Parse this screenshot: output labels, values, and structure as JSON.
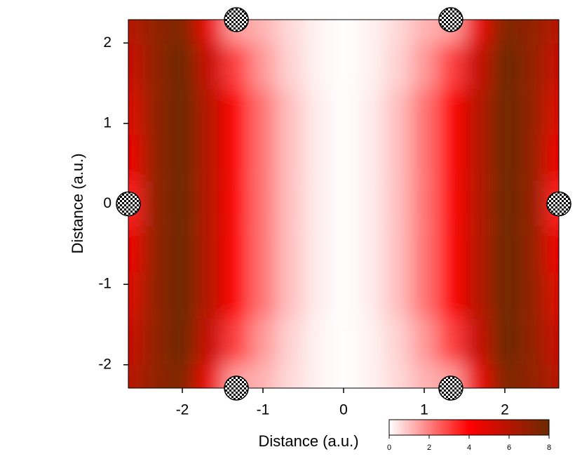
{
  "chart_data": {
    "type": "heatmap",
    "x_label": "Distance (a.u.)",
    "y_label": "Distance (a.u.)",
    "x": [
      -2.66,
      -2.33,
      -2.0,
      -1.67,
      -1.33,
      -1.0,
      -0.67,
      -0.33,
      0,
      0.33,
      0.67,
      1.0,
      1.33,
      1.67,
      2.0,
      2.33,
      2.66
    ],
    "y": [
      2.28,
      1.71,
      1.14,
      0.57,
      0,
      -0.57,
      -1.14,
      -1.71,
      -2.28
    ],
    "z": [
      [
        6,
        7,
        7.5,
        4.5,
        1.5,
        1.2,
        0.6,
        0.2,
        0,
        0.2,
        0.6,
        1.2,
        1.5,
        4.5,
        7.5,
        7,
        6
      ],
      [
        5.5,
        7,
        8,
        5.5,
        3,
        1.6,
        0.7,
        0.2,
        0,
        0.2,
        0.7,
        1.6,
        3,
        5.5,
        8,
        7,
        5.5
      ],
      [
        5,
        7,
        8,
        6,
        4,
        2.2,
        1,
        0.3,
        0,
        0.3,
        1,
        2.2,
        4,
        6,
        8,
        7,
        5
      ],
      [
        4.5,
        7,
        8,
        6,
        4,
        2.2,
        1,
        0.3,
        0,
        0.3,
        1,
        2.2,
        4,
        6,
        8,
        7,
        4.5
      ],
      [
        3.5,
        7,
        8,
        6,
        4,
        2.2,
        1,
        0.3,
        0,
        0.3,
        1,
        2.2,
        4,
        6,
        8,
        7,
        3.5
      ],
      [
        4.5,
        7,
        8,
        6,
        4,
        2.2,
        1,
        0.3,
        0,
        0.3,
        1,
        2.2,
        4,
        6,
        8,
        7,
        4.5
      ],
      [
        5,
        7,
        8,
        6,
        4,
        2.2,
        1,
        0.3,
        0,
        0.3,
        1,
        2.2,
        4,
        6,
        8,
        7,
        5
      ],
      [
        5.5,
        7,
        8,
        5.5,
        3,
        1.6,
        0.7,
        0.2,
        0,
        0.2,
        0.7,
        1.6,
        3,
        5.5,
        8,
        7,
        5.5
      ],
      [
        6,
        7,
        7.5,
        4.5,
        1.5,
        1.2,
        0.6,
        0.2,
        0,
        0.2,
        0.6,
        1.2,
        1.5,
        4.5,
        7.5,
        7,
        6
      ]
    ],
    "colors": [
      "#ffffff",
      "#ff0000",
      "#6b2a00"
    ],
    "zlim": [
      0,
      8
    ],
    "zticks": [
      0,
      2,
      4,
      6,
      8
    ],
    "xlim": [
      -2.67,
      2.67
    ],
    "ylim": [
      -2.29,
      2.29
    ],
    "xticks": [
      -2,
      -1,
      0,
      1,
      2
    ],
    "yticks": [
      -2,
      -1,
      0,
      1,
      2
    ],
    "markers": {
      "x": [
        -1.33,
        1.33,
        -2.67,
        2.67,
        -1.33,
        1.33
      ],
      "y": [
        2.29,
        2.29,
        0,
        0,
        -2.29,
        -2.29
      ]
    }
  }
}
